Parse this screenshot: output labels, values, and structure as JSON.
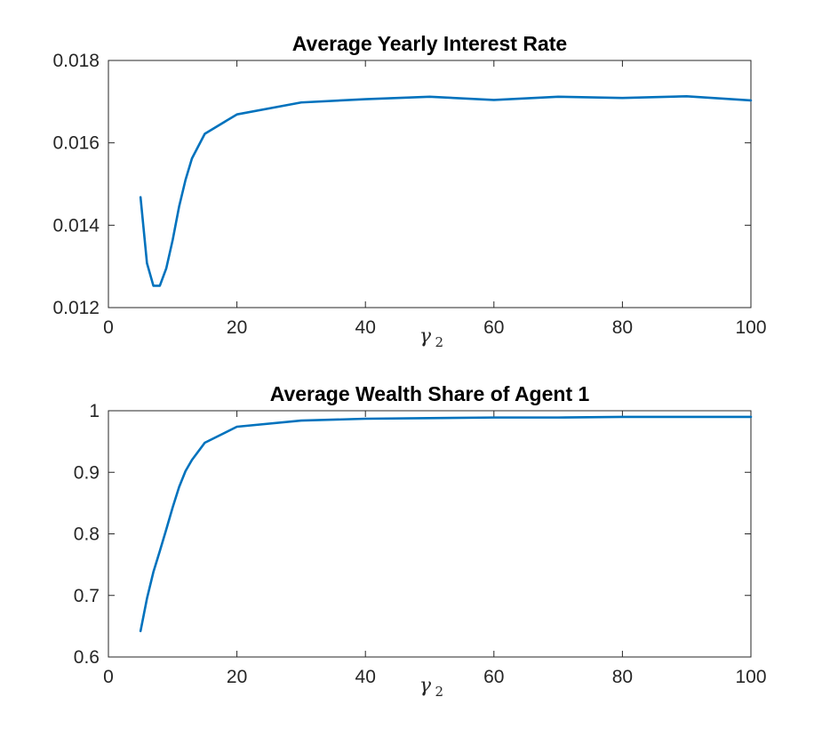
{
  "chart_data": [
    {
      "type": "line",
      "title": "Average Yearly Interest Rate",
      "xlabel": "γ",
      "xlabel_subscript": "2",
      "ylabel": "",
      "xlim": [
        0,
        100
      ],
      "ylim": [
        0.012,
        0.018
      ],
      "xticks": [
        0,
        20,
        40,
        60,
        80,
        100
      ],
      "xtick_labels": [
        "0",
        "20",
        "40",
        "60",
        "80",
        "100"
      ],
      "yticks": [
        0.012,
        0.014,
        0.016,
        0.018
      ],
      "ytick_labels": [
        "0.012",
        "0.014",
        "0.016",
        "0.018"
      ],
      "grid": false,
      "color": "#0072BD",
      "x": [
        5,
        6,
        7,
        8,
        9,
        10,
        11,
        12,
        13,
        15,
        20,
        30,
        40,
        50,
        60,
        70,
        80,
        90,
        100
      ],
      "values": [
        0.01468,
        0.01308,
        0.01253,
        0.01253,
        0.01295,
        0.01364,
        0.01445,
        0.0151,
        0.01562,
        0.01622,
        0.01669,
        0.01698,
        0.01706,
        0.01712,
        0.01704,
        0.01712,
        0.01709,
        0.01713,
        0.01703
      ]
    },
    {
      "type": "line",
      "title": "Average Wealth Share of Agent 1",
      "xlabel": "γ",
      "xlabel_subscript": "2",
      "ylabel": "",
      "xlim": [
        0,
        100
      ],
      "ylim": [
        0.6,
        1.0
      ],
      "xticks": [
        0,
        20,
        40,
        60,
        80,
        100
      ],
      "xtick_labels": [
        "0",
        "20",
        "40",
        "60",
        "80",
        "100"
      ],
      "yticks": [
        0.6,
        0.7,
        0.8,
        0.9,
        1.0
      ],
      "ytick_labels": [
        "0.6",
        "0.7",
        "0.8",
        "0.9",
        "1"
      ],
      "grid": false,
      "color": "#0072BD",
      "x": [
        5,
        6,
        7,
        8,
        9,
        10,
        11,
        12,
        13,
        15,
        20,
        30,
        40,
        50,
        60,
        70,
        80,
        90,
        100
      ],
      "values": [
        0.642,
        0.695,
        0.738,
        0.772,
        0.807,
        0.843,
        0.876,
        0.902,
        0.92,
        0.948,
        0.974,
        0.984,
        0.987,
        0.988,
        0.989,
        0.989,
        0.99,
        0.99,
        0.99
      ]
    }
  ]
}
